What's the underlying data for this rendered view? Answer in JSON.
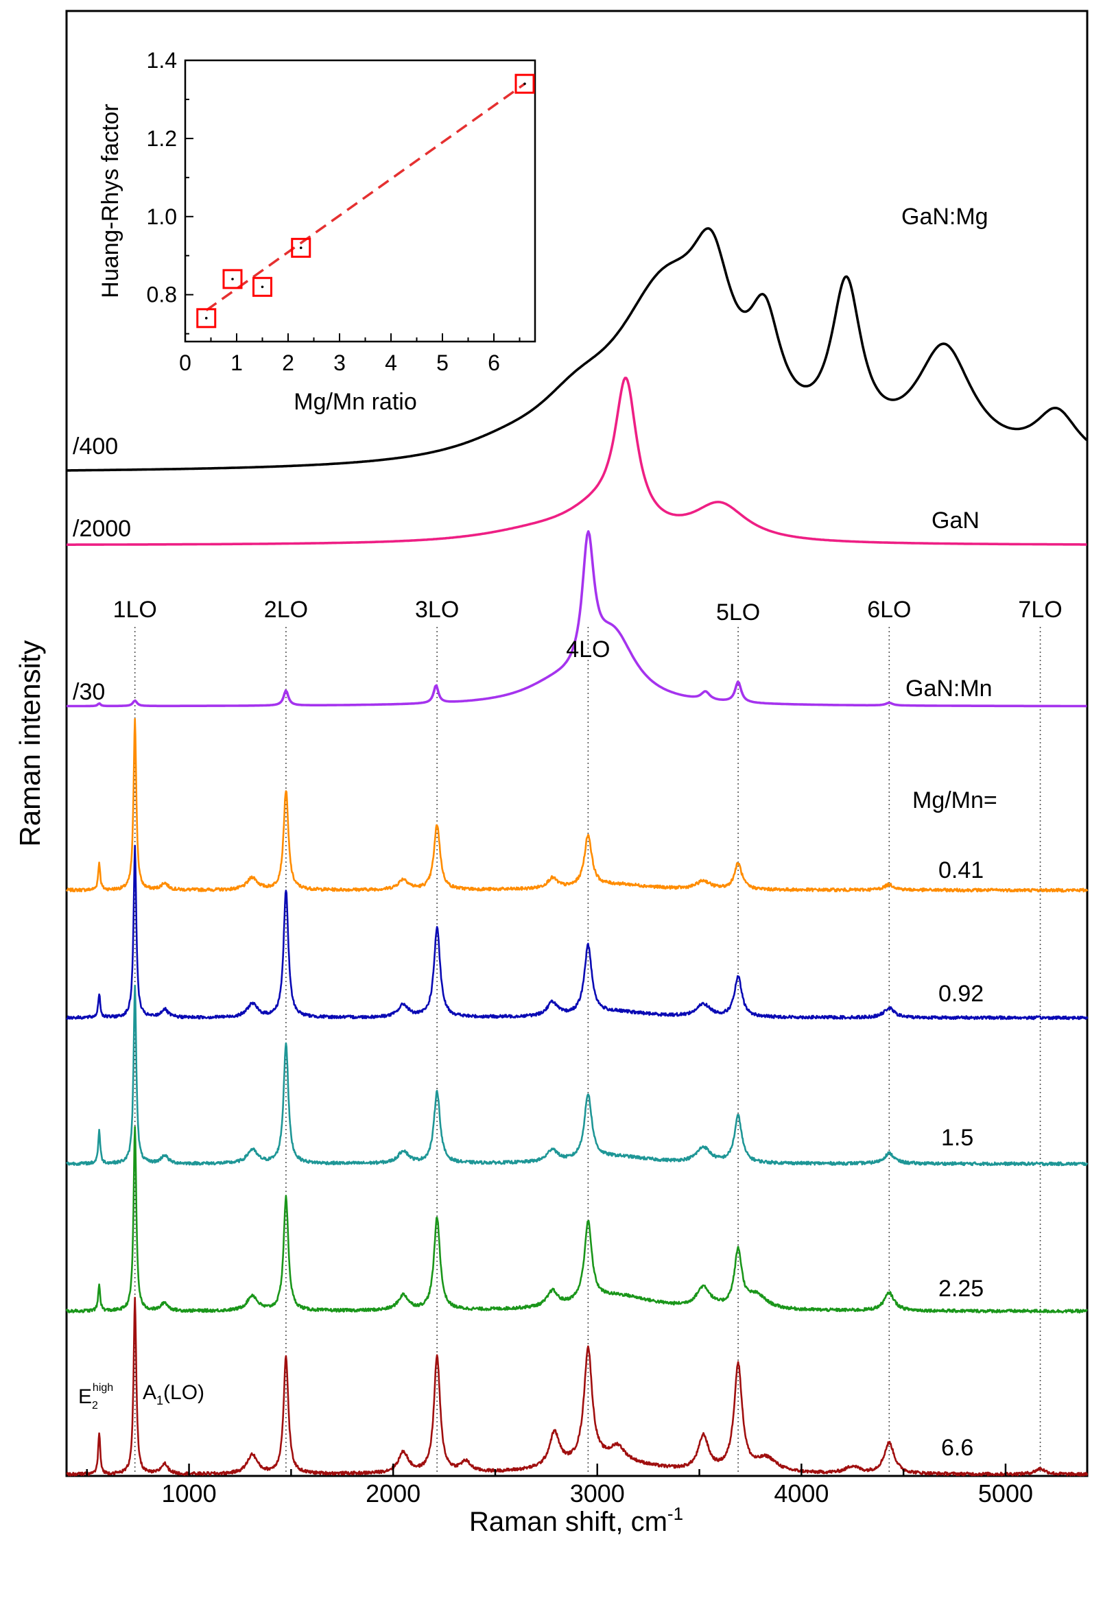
{
  "chart_data": [
    {
      "id": "main",
      "type": "line",
      "title": "",
      "xlabel": "Raman shift, cm",
      "xlabel_sup": "-1",
      "ylabel": "Raman intensity",
      "xlim": [
        400,
        5400
      ],
      "xticks": [
        1000,
        2000,
        3000,
        4000,
        5000
      ],
      "xtick_labels": [
        "1000",
        "2000",
        "3000",
        "4000",
        "5000"
      ],
      "yticks": false,
      "lo_lines": [
        {
          "label": "1LO",
          "x": 735
        },
        {
          "label": "2LO",
          "x": 1475
        },
        {
          "label": "3LO",
          "x": 2215
        },
        {
          "label": "4LO",
          "x": 2955
        },
        {
          "label": "5LO",
          "x": 3690
        },
        {
          "label": "6LO",
          "x": 4430
        },
        {
          "label": "7LO",
          "x": 5170
        }
      ],
      "peak_labels": {
        "e2_base": "E",
        "e2_sub": "2",
        "e2_sup": "high",
        "a1_base": "A",
        "a1_sub": "1",
        "a1_rest": "(LO)"
      },
      "mg_mn_label": "Mg/Mn=",
      "series": [
        {
          "name": "GaN:Mg",
          "label": "GaN:Mg",
          "scale_label": "/400",
          "color": "#000000",
          "kind": "broad",
          "baseline": 0,
          "peaks": [
            [
              3330,
              300,
              250
            ],
            [
              3560,
              120,
              180
            ],
            [
              3820,
              95,
              150
            ],
            [
              4220,
              90,
              240
            ],
            [
              4700,
              170,
              170
            ],
            [
              5250,
              130,
              75
            ],
            [
              2900,
              250,
              60
            ],
            [
              2550,
              300,
              15
            ]
          ]
        },
        {
          "name": "GaN",
          "label": "GaN",
          "scale_label": "/2000",
          "color": "#ee1f84",
          "kind": "broad",
          "baseline": 0,
          "peaks": [
            [
              3140,
              65,
              215
            ],
            [
              3000,
              210,
              40
            ],
            [
              3600,
              160,
              55
            ],
            [
              2700,
              350,
              15
            ]
          ]
        },
        {
          "name": "GaN:Mn",
          "label": "GaN:Mn",
          "scale_label": "/30",
          "color": "#a533ee",
          "kind": "broad",
          "baseline": 0,
          "peaks": [
            [
              2955,
              35,
              190
            ],
            [
              3080,
              130,
              95
            ],
            [
              2800,
              200,
              25
            ],
            [
              2210,
              14,
              26
            ],
            [
              1475,
              14,
              22
            ],
            [
              3690,
              18,
              30
            ],
            [
              3530,
              25,
              12
            ],
            [
              735,
              12,
              8
            ],
            [
              560,
              8,
              4
            ],
            [
              4430,
              20,
              4
            ]
          ]
        },
        {
          "name": "Mg/Mn=0.41",
          "label": "0.41",
          "color": "#ff8c00",
          "kind": "sharp",
          "mg_mn": 0.41,
          "baseline": 0,
          "peaks": [
            [
              735,
              8,
              250
            ],
            [
              1475,
              14,
              145
            ],
            [
              2215,
              18,
              95
            ],
            [
              2955,
              22,
              75
            ],
            [
              3690,
              22,
              38
            ],
            [
              560,
              6,
              40
            ],
            [
              880,
              20,
              10
            ],
            [
              1310,
              30,
              18
            ],
            [
              2050,
              30,
              15
            ],
            [
              2780,
              30,
              15
            ],
            [
              3520,
              40,
              12
            ],
            [
              4430,
              30,
              8
            ],
            [
              3100,
              200,
              8
            ]
          ]
        },
        {
          "name": "Mg/Mn=0.92",
          "label": "0.92",
          "color": "#0a0ab4",
          "kind": "sharp",
          "mg_mn": 0.92,
          "baseline": 0,
          "peaks": [
            [
              735,
              8,
              250
            ],
            [
              1475,
              14,
              185
            ],
            [
              2215,
              18,
              130
            ],
            [
              2955,
              22,
              100
            ],
            [
              3690,
              22,
              58
            ],
            [
              560,
              6,
              35
            ],
            [
              880,
              20,
              12
            ],
            [
              1310,
              30,
              20
            ],
            [
              2050,
              30,
              18
            ],
            [
              2780,
              30,
              20
            ],
            [
              3520,
              40,
              18
            ],
            [
              4430,
              30,
              14
            ],
            [
              3100,
              200,
              8
            ]
          ]
        },
        {
          "name": "Mg/Mn=1.5",
          "label": "1.5",
          "color": "#1e9696",
          "kind": "sharp",
          "mg_mn": 1.5,
          "baseline": 0,
          "peaks": [
            [
              735,
              8,
              260
            ],
            [
              1475,
              14,
              175
            ],
            [
              2215,
              18,
              105
            ],
            [
              2955,
              22,
              95
            ],
            [
              3690,
              22,
              68
            ],
            [
              560,
              6,
              48
            ],
            [
              880,
              20,
              12
            ],
            [
              1310,
              30,
              20
            ],
            [
              2050,
              30,
              18
            ],
            [
              2780,
              30,
              18
            ],
            [
              3520,
              40,
              22
            ],
            [
              4430,
              30,
              15
            ],
            [
              3100,
              200,
              10
            ]
          ]
        },
        {
          "name": "Mg/Mn=2.25",
          "label": "2.25",
          "color": "#1a961a",
          "kind": "sharp",
          "mg_mn": 2.25,
          "baseline": 0,
          "peaks": [
            [
              735,
              8,
              270
            ],
            [
              1475,
              14,
              165
            ],
            [
              2215,
              18,
              135
            ],
            [
              2955,
              22,
              115
            ],
            [
              3690,
              22,
              82
            ],
            [
              560,
              6,
              38
            ],
            [
              880,
              20,
              12
            ],
            [
              1310,
              30,
              22
            ],
            [
              2050,
              30,
              22
            ],
            [
              2780,
              30,
              22
            ],
            [
              3520,
              40,
              30
            ],
            [
              4430,
              30,
              26
            ],
            [
              3100,
              220,
              22
            ],
            [
              3780,
              60,
              20
            ]
          ]
        },
        {
          "name": "Mg/Mn=6.6",
          "label": "6.6",
          "color": "#a00f0f",
          "kind": "sharp",
          "mg_mn": 6.6,
          "baseline": 0,
          "peaks": [
            [
              735,
              8,
              255
            ],
            [
              1475,
              14,
              170
            ],
            [
              2215,
              18,
              170
            ],
            [
              2955,
              24,
              165
            ],
            [
              3690,
              24,
              155
            ],
            [
              560,
              6,
              60
            ],
            [
              880,
              20,
              15
            ],
            [
              1310,
              30,
              28
            ],
            [
              2050,
              30,
              30
            ],
            [
              2790,
              30,
              50
            ],
            [
              2355,
              30,
              15
            ],
            [
              3100,
              40,
              20
            ],
            [
              3520,
              30,
              50
            ],
            [
              3830,
              60,
              20
            ],
            [
              4430,
              30,
              45
            ],
            [
              4250,
              40,
              10
            ],
            [
              5170,
              30,
              8
            ],
            [
              3050,
              250,
              20
            ]
          ]
        }
      ]
    },
    {
      "id": "inset",
      "type": "scatter",
      "title": "",
      "xlabel": "Mg/Mn ratio",
      "ylabel": "Huang-Rhys factor",
      "xlim": [
        0,
        6.8
      ],
      "ylim": [
        0.68,
        1.4
      ],
      "xticks": [
        0,
        1,
        2,
        3,
        4,
        5,
        6
      ],
      "xtick_labels": [
        "0",
        "1",
        "2",
        "3",
        "4",
        "5",
        "6"
      ],
      "yticks": [
        0.8,
        1.0,
        1.2,
        1.4
      ],
      "ytick_labels": [
        "0.8",
        "1.0",
        "1.2",
        "1.4"
      ],
      "x": [
        0.41,
        0.92,
        1.5,
        2.25,
        6.6
      ],
      "y": [
        0.74,
        0.84,
        0.82,
        0.92,
        1.34
      ],
      "marker_color": "#ff0000",
      "fit_line": {
        "color": "#e53030",
        "x": [
          0.41,
          6.6
        ],
        "y": [
          0.76,
          1.34
        ],
        "style": "dashed"
      }
    }
  ]
}
